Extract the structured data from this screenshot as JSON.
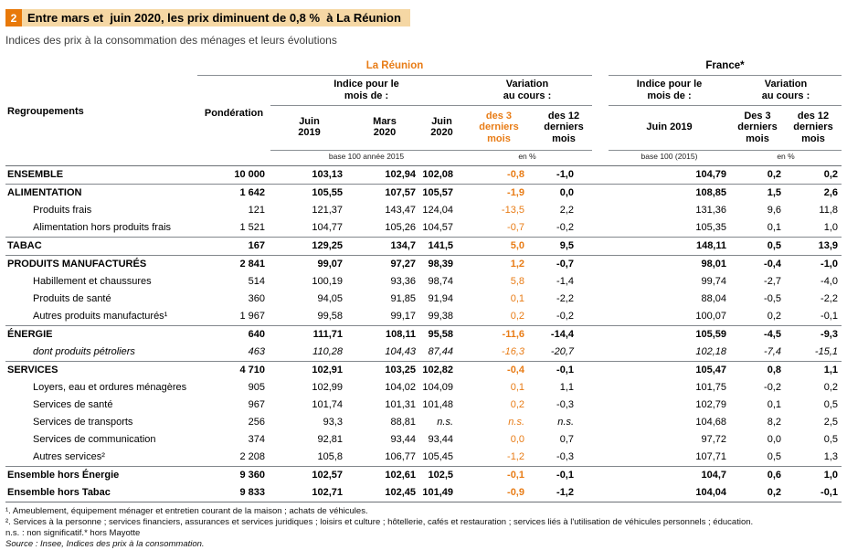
{
  "title": {
    "number": "2",
    "text": "Entre mars et  juin 2020, les prix diminuent de 0,8 %  à La Réunion"
  },
  "subtitle": "Indices des prix à la consommation des ménages et leurs évolutions",
  "accent_colors": {
    "orange": "#e87c16",
    "title_badge": "#e8790a",
    "title_highlight": "#f5d7a4"
  },
  "table": {
    "groups": {
      "reunion": "La Réunion",
      "france": "France*"
    },
    "headers": {
      "regroupements": "Regroupements",
      "ponderation": "Pondération",
      "indice_reunion": "Indice pour le\nmois de :",
      "variation_reunion": "Variation\nau cours :",
      "indice_france": "Indice pour le\nmois de :",
      "variation_france": "Variation\nau cours :",
      "cols": [
        "Juin\n2019",
        "Mars\n2020",
        "Juin\n2020",
        "des 3\nderniers\nmois",
        "des 12\nderniers\nmois",
        "Juin 2019",
        "Des 3\nderniers\nmois",
        "des 12\nderniers\nmois"
      ],
      "units": {
        "base_reunion": "base 100 année 2015",
        "pct_reunion": "en %",
        "base_france": "base 100 (2015)",
        "pct_france": "en %"
      }
    },
    "rows": [
      {
        "label": "ENSEMBLE",
        "style": "major",
        "rule_top": false,
        "values": [
          "10 000",
          "103,13",
          "102,94",
          "102,08",
          "-0,8",
          "-1,0",
          "104,79",
          "0,2",
          "0,2"
        ]
      },
      {
        "label": "ALIMENTATION",
        "style": "major",
        "rule_top": true,
        "values": [
          "1 642",
          "105,55",
          "107,57",
          "105,57",
          "-1,9",
          "0,0",
          "108,85",
          "1,5",
          "2,6"
        ]
      },
      {
        "label": "Produits frais",
        "style": "sub",
        "rule_top": false,
        "values": [
          "121",
          "121,37",
          "143,47",
          "124,04",
          "-13,5",
          "2,2",
          "131,36",
          "9,6",
          "11,8"
        ]
      },
      {
        "label": "Alimentation hors produits frais",
        "style": "sub",
        "rule_top": false,
        "values": [
          "1 521",
          "104,77",
          "105,26",
          "104,57",
          "-0,7",
          "-0,2",
          "105,35",
          "0,1",
          "1,0"
        ]
      },
      {
        "label": "TABAC",
        "style": "major",
        "rule_top": true,
        "values": [
          "167",
          "129,25",
          "134,7",
          "141,5",
          "5,0",
          "9,5",
          "148,11",
          "0,5",
          "13,9"
        ]
      },
      {
        "label": "PRODUITS MANUFACTURÉS",
        "style": "major",
        "rule_top": true,
        "values": [
          "2 841",
          "99,07",
          "97,27",
          "98,39",
          "1,2",
          "-0,7",
          "98,01",
          "-0,4",
          "-1,0"
        ]
      },
      {
        "label": "Habillement et chaussures",
        "style": "sub",
        "rule_top": false,
        "values": [
          "514",
          "100,19",
          "93,36",
          "98,74",
          "5,8",
          "-1,4",
          "99,74",
          "-2,7",
          "-4,0"
        ]
      },
      {
        "label": "Produits de santé",
        "style": "sub",
        "rule_top": false,
        "values": [
          "360",
          "94,05",
          "91,85",
          "91,94",
          "0,1",
          "-2,2",
          "88,04",
          "-0,5",
          "-2,2"
        ]
      },
      {
        "label": "Autres produits manufacturés¹",
        "style": "sub",
        "rule_top": false,
        "values": [
          "1 967",
          "99,58",
          "99,17",
          "99,38",
          "0,2",
          "-0,2",
          "100,07",
          "0,2",
          "-0,1"
        ]
      },
      {
        "label": "ÉNERGIE",
        "style": "major",
        "rule_top": true,
        "values": [
          "640",
          "111,71",
          "108,11",
          "95,58",
          "-11,6",
          "-14,4",
          "105,59",
          "-4,5",
          "-9,3"
        ]
      },
      {
        "label": "dont produits pétroliers",
        "style": "italic",
        "rule_top": false,
        "values": [
          "463",
          "110,28",
          "104,43",
          "87,44",
          "-16,3",
          "-20,7",
          "102,18",
          "-7,4",
          "-15,1"
        ]
      },
      {
        "label": "SERVICES",
        "style": "major",
        "rule_top": true,
        "values": [
          "4 710",
          "102,91",
          "103,25",
          "102,82",
          "-0,4",
          "-0,1",
          "105,47",
          "0,8",
          "1,1"
        ]
      },
      {
        "label": "Loyers, eau et ordures ménagères",
        "style": "sub",
        "rule_top": false,
        "values": [
          "905",
          "102,99",
          "104,02",
          "104,09",
          "0,1",
          "1,1",
          "101,75",
          "-0,2",
          "0,2"
        ]
      },
      {
        "label": "Services de santé",
        "style": "sub",
        "rule_top": false,
        "values": [
          "967",
          "101,74",
          "101,31",
          "101,48",
          "0,2",
          "-0,3",
          "102,79",
          "0,1",
          "0,5"
        ]
      },
      {
        "label": "Services de transports",
        "style": "sub",
        "rule_top": false,
        "values": [
          "256",
          "93,3",
          "88,81",
          "n.s.",
          "n.s.",
          "n.s.",
          "104,68",
          "8,2",
          "2,5"
        ]
      },
      {
        "label": "Services de communication",
        "style": "sub",
        "rule_top": false,
        "values": [
          "374",
          "92,81",
          "93,44",
          "93,44",
          "0,0",
          "0,7",
          "97,72",
          "0,0",
          "0,5"
        ]
      },
      {
        "label": "Autres services²",
        "style": "sub",
        "rule_top": false,
        "values": [
          "2 208",
          "105,8",
          "106,77",
          "105,45",
          "-1,2",
          "-0,3",
          "107,71",
          "0,5",
          "1,3"
        ]
      },
      {
        "label": "Ensemble hors Énergie",
        "style": "major",
        "rule_top": true,
        "values": [
          "9 360",
          "102,57",
          "102,61",
          "102,5",
          "-0,1",
          "-0,1",
          "104,7",
          "0,6",
          "1,0"
        ]
      },
      {
        "label": "Ensemble hors Tabac",
        "style": "major",
        "rule_top": false,
        "values": [
          "9 833",
          "102,71",
          "102,45",
          "101,49",
          "-0,9",
          "-1,2",
          "104,04",
          "0,2",
          "-0,1"
        ]
      }
    ]
  },
  "footnotes": [
    "¹. Ameublement, équipement ménager et entretien courant de la maison ; achats de véhicules.",
    "². Services à la personne ; services financiers, assurances et services juridiques ; loisirs et culture ; hôtellerie, cafés et restauration ; services liés à l'utilisation de véhicules personnels ; éducation.",
    "n.s. : non significatif.* hors Mayotte",
    "Source : Insee, Indices des prix à la consommation."
  ]
}
